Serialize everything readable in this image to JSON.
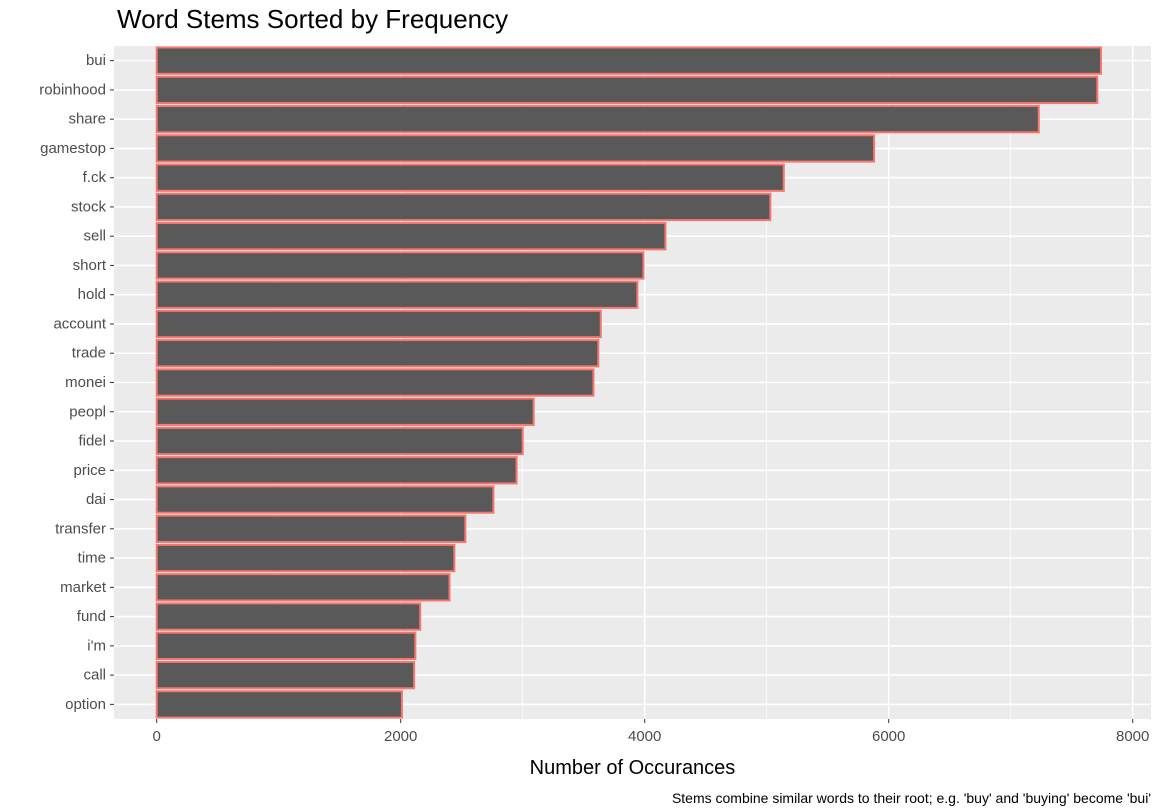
{
  "chart_data": {
    "type": "bar",
    "orientation": "horizontal",
    "title": "Word Stems Sorted by Frequency",
    "xlabel": "Number of Occurances",
    "ylabel": "",
    "caption": "Stems combine similar words to their root; e.g. 'buy' and 'buying' become 'bui'",
    "xlim": [
      -350,
      8150
    ],
    "xticks": [
      0,
      2000,
      4000,
      6000,
      8000
    ],
    "grid": true,
    "legend": "none",
    "colors": {
      "panel": "#ebebeb",
      "grid": "#ffffff",
      "bar_fill": "#595959",
      "bar_outline": "#f8766d"
    },
    "categories": [
      "bui",
      "robinhood",
      "share",
      "gamestop",
      "f.ck",
      "stock",
      "sell",
      "short",
      "hold",
      "account",
      "trade",
      "monei",
      "peopl",
      "fidel",
      "price",
      "dai",
      "transfer",
      "time",
      "market",
      "fund",
      "i'm",
      "call",
      "option"
    ],
    "values": [
      7740,
      7710,
      7230,
      5880,
      5140,
      5030,
      4170,
      3990,
      3940,
      3640,
      3620,
      3580,
      3090,
      3000,
      2950,
      2760,
      2530,
      2440,
      2400,
      2160,
      2120,
      2110,
      2010
    ]
  }
}
